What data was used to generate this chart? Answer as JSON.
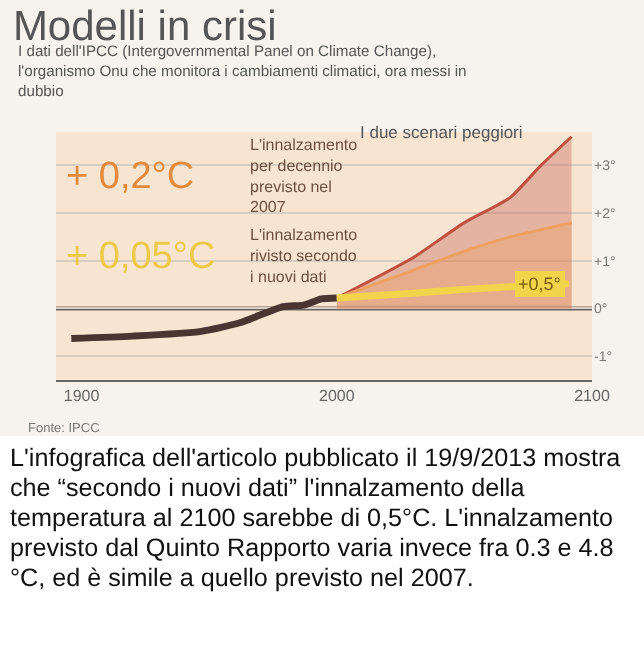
{
  "chart_data": {
    "type": "line",
    "title": "Modelli in crisi",
    "subtitle": "I dati dell'IPCC (Intergovernmental Panel on Climate Change), l'organismo Onu che monitora i cambiamenti climatici, ora messi in dubbio",
    "xlim": [
      1890,
      2100
    ],
    "xticks": [
      1900,
      2000,
      2100
    ],
    "ylim": [
      -1.5,
      3.7
    ],
    "yticks": [
      {
        "value": 3,
        "label": "+3°"
      },
      {
        "value": 2,
        "label": "+2°"
      },
      {
        "value": 1,
        "label": "+1°"
      },
      {
        "value": 0,
        "label": "0°"
      },
      {
        "value": -1,
        "label": "-1°"
      }
    ],
    "grid": "y",
    "marker": "none",
    "line_style": "solid",
    "ref_lines": [
      {
        "axis": "y",
        "value": 0,
        "color": "#6b6560"
      }
    ],
    "series": [
      {
        "type": "area",
        "color": "#c0503f",
        "x": [
          2000,
          2030,
          2050,
          2068,
          2080,
          2092
        ],
        "values": [
          0.22,
          1.07,
          1.8,
          2.33,
          3.0,
          3.6
        ]
      },
      {
        "type": "area",
        "color": "#eda060",
        "x": [
          2000,
          2030,
          2050,
          2068,
          2080,
          2092
        ],
        "values": [
          0.22,
          0.8,
          1.2,
          1.5,
          1.65,
          1.8
        ]
      },
      {
        "color": "#4a3530",
        "x": [
          1896,
          1920,
          1947,
          1962,
          1979,
          1987,
          1994,
          2000
        ],
        "values": [
          -0.63,
          -0.58,
          -0.48,
          -0.3,
          0.04,
          0.07,
          0.2,
          0.22
        ]
      },
      {
        "color": "#f2d44a",
        "x": [
          2000,
          2030,
          2050,
          2070,
          2091
        ],
        "values": [
          0.22,
          0.32,
          0.4,
          0.46,
          0.52
        ]
      }
    ],
    "annotations": [
      "+ 0,2°C",
      "L'innalzamento per decennio previsto nel 2007",
      "+ 0,05°C",
      "L'innalzamento rivisto secondo i nuovi dati",
      "I due scenari peggiori",
      {
        "text": "+0,5°",
        "x": 2080,
        "y": 0.5
      },
      "Fonte: IPCC",
      "L'infografica dell'articolo pubblicato il 19/9/2013 mostra che “secondo i nuovi dati” l'innalzamento della temperatura al 2100 sarebbe di 0,5°C. L'innalzamento previsto dal Quinto Rapporto varia invece fra 0.3 e 4.8 °C, ed è simile a quello previsto nel 2007."
    ]
  }
}
